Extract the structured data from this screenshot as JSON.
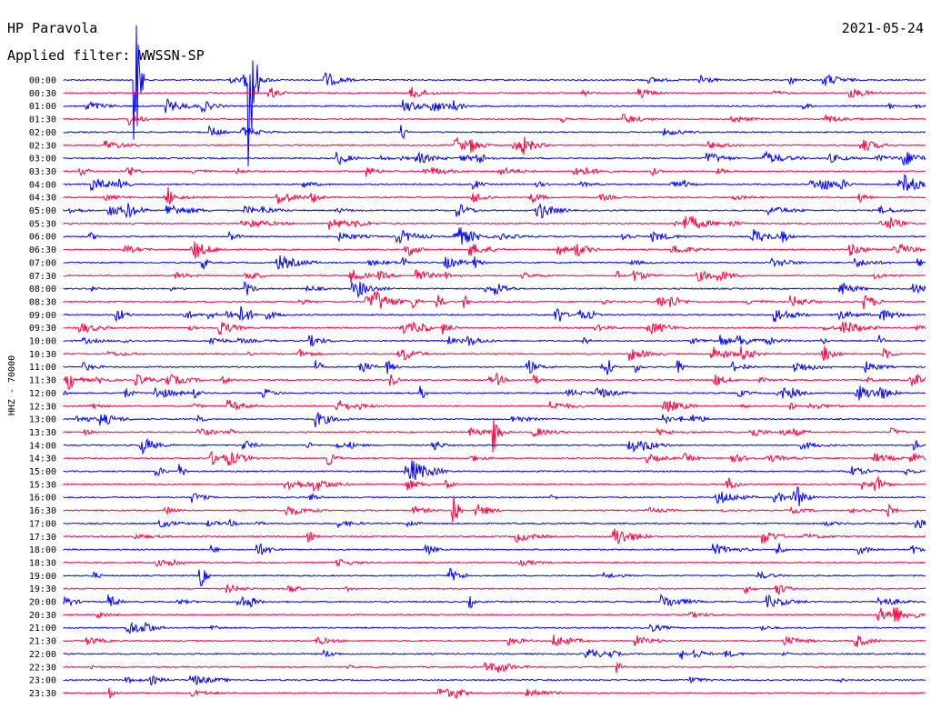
{
  "header": {
    "station": "HP Paravola",
    "date": "2021-05-24",
    "filter": "Applied filter: WWSSN-SP"
  },
  "chart_data": {
    "type": "line",
    "title": "HP Paravola",
    "subtitle": "Applied filter: WWSSN-SP",
    "date": "2021-05-24",
    "ylabel": "HHZ - 70000",
    "xlabel": "",
    "rows": [
      "00:00",
      "00:30",
      "01:00",
      "01:30",
      "02:00",
      "02:30",
      "03:00",
      "03:30",
      "04:00",
      "04:30",
      "05:00",
      "05:30",
      "06:00",
      "06:30",
      "07:00",
      "07:30",
      "08:00",
      "08:30",
      "09:00",
      "09:30",
      "10:00",
      "10:30",
      "11:00",
      "11:30",
      "12:00",
      "12:30",
      "13:00",
      "13:30",
      "14:00",
      "14:30",
      "15:00",
      "15:30",
      "16:00",
      "16:30",
      "17:00",
      "17:30",
      "18:00",
      "18:30",
      "19:00",
      "19:30",
      "20:00",
      "20:30",
      "21:00",
      "21:30",
      "22:00",
      "22:30",
      "23:00",
      "23:30"
    ],
    "row_colors": [
      "#0000ff",
      "#ff0040"
    ],
    "events": [
      {
        "row": "00:00",
        "minute": 2.5,
        "amplitude": "very large"
      },
      {
        "row": "00:00",
        "minute": 6.5,
        "amplitude": "very large"
      },
      {
        "row": "16:30",
        "minute": 13.6,
        "amplitude": "large"
      },
      {
        "row": "13:30",
        "minute": 15.0,
        "amplitude": "large"
      },
      {
        "row": "19:00",
        "minute": 4.8,
        "amplitude": "medium"
      }
    ]
  }
}
